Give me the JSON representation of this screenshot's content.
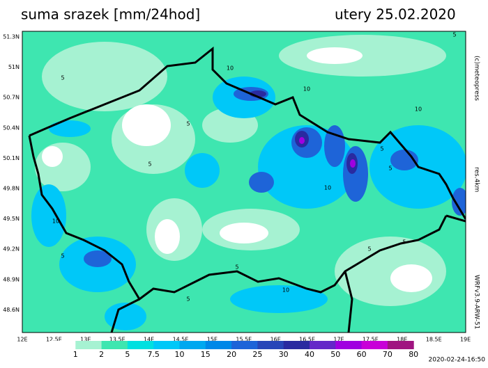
{
  "header": {
    "title": "suma srazek [mm/24hod]",
    "date": "utery 25.02.2020"
  },
  "map": {
    "lat_labels": [
      "51.3N",
      "51N",
      "50.7N",
      "50.4N",
      "50.1N",
      "49.8N",
      "49.5N",
      "49.2N",
      "48.9N",
      "48.6N"
    ],
    "lon_labels": [
      "12E",
      "12.5E",
      "13E",
      "13.5E",
      "14E",
      "14.5E",
      "15E",
      "15.5E",
      "16E",
      "16.5E",
      "17E",
      "17.5E",
      "18E",
      "18.5E",
      "19E"
    ],
    "contour_labels": [
      "5",
      "10",
      "5",
      "10",
      "5",
      "5",
      "5",
      "10",
      "5",
      "10",
      "5",
      "10",
      "5",
      "5",
      "5",
      "10",
      "5"
    ]
  },
  "legend": {
    "labels": [
      "1",
      "2",
      "5",
      "7.5",
      "10",
      "15",
      "20",
      "25",
      "30",
      "40",
      "50",
      "60",
      "70",
      "80"
    ],
    "colors": [
      "#ffffff",
      "#a6f2d2",
      "#3ee6b0",
      "#00e0e0",
      "#00c8f8",
      "#00a8f0",
      "#0088e8",
      "#1e64d8",
      "#2846b8",
      "#2a2aa0",
      "#6428c8",
      "#a000e0",
      "#c800d8",
      "#a01480"
    ]
  },
  "side": {
    "copyright": "(c)meteopress",
    "resolution": "res.4km",
    "model": "WRFv3.9-ARW-51"
  },
  "footer": {
    "timestamp": "2020-02-24-16:50"
  }
}
